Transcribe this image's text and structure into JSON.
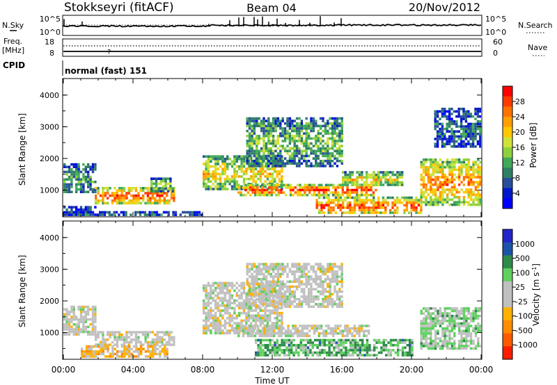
{
  "header": {
    "radar": "Stokkseyri (fitACF)",
    "beam": "Beam 04",
    "date": "20/Nov/2012"
  },
  "nsky_panel": {
    "left_label": "N.Sky",
    "right_label": "N.Search",
    "left_ticks": [
      "10^5",
      "10^0"
    ],
    "right_ticks": [
      "10^5",
      "10^0"
    ]
  },
  "freq_panel": {
    "left_label_1": "Freq.",
    "left_label_2": "[MHz]",
    "right_label": "Nave",
    "left_ticks": [
      "18",
      "8"
    ],
    "right_ticks": [
      "60",
      "0"
    ]
  },
  "cpid": {
    "label": "CPID",
    "value": "normal (fast) 151"
  },
  "x_axis": {
    "label": "Time UT",
    "ticks": [
      "00:00",
      "04:00",
      "08:00",
      "12:00",
      "16:00",
      "20:00",
      "00:00"
    ]
  },
  "chart_data": [
    {
      "type": "heatmap",
      "name": "power",
      "ylabel": "Slant Range [km]",
      "x_range_hours": [
        0,
        24
      ],
      "ylim": [
        180,
        4500
      ],
      "yticks": [
        "1000",
        "2000",
        "3000",
        "4000"
      ],
      "colorbar": {
        "label": "Power [dB]",
        "ticks": [
          "28",
          "24",
          "20",
          "16",
          "12",
          "8",
          "4"
        ],
        "colors": [
          "#ff0000",
          "#ff3a00",
          "#ff7200",
          "#ffa000",
          "#ffc800",
          "#cfe23a",
          "#8fd13c",
          "#3fa95a",
          "#2f7f63",
          "#274e9a",
          "#0019c8",
          "#0000ff"
        ]
      },
      "bands": [
        {
          "t0": 0.0,
          "t1": 1.8,
          "r0": 950,
          "r1": 1850,
          "level": 0.3
        },
        {
          "t0": 0.0,
          "t1": 1.8,
          "r0": 200,
          "r1": 500,
          "level": 0.15
        },
        {
          "t0": 1.8,
          "t1": 6.3,
          "r0": 600,
          "r1": 1100,
          "level": 0.82
        },
        {
          "t0": 5.0,
          "t1": 6.3,
          "r0": 1000,
          "r1": 1400,
          "level": 0.45
        },
        {
          "t0": 0.0,
          "t1": 8.0,
          "r0": 200,
          "r1": 340,
          "level": 0.18
        },
        {
          "t0": 8.0,
          "t1": 12.5,
          "r0": 1000,
          "r1": 2100,
          "level": 0.55
        },
        {
          "t0": 10.0,
          "t1": 18.0,
          "r0": 880,
          "r1": 1200,
          "level": 0.86
        },
        {
          "t0": 10.5,
          "t1": 16.0,
          "r0": 1800,
          "r1": 3300,
          "level": 0.38
        },
        {
          "t0": 16.0,
          "t1": 19.5,
          "r0": 1150,
          "r1": 1600,
          "level": 0.55
        },
        {
          "t0": 14.5,
          "t1": 20.5,
          "r0": 250,
          "r1": 800,
          "level": 0.78
        },
        {
          "t0": 20.5,
          "t1": 23.9,
          "r0": 550,
          "r1": 2000,
          "level": 0.72
        },
        {
          "t0": 21.3,
          "t1": 23.9,
          "r0": 2400,
          "r1": 3600,
          "level": 0.22
        }
      ]
    },
    {
      "type": "heatmap",
      "name": "velocity",
      "ylabel": "Slant Range [km]",
      "x_range_hours": [
        0,
        24
      ],
      "ylim": [
        180,
        4500
      ],
      "yticks": [
        "1000",
        "2000",
        "3000",
        "4000"
      ],
      "colorbar": {
        "label": "Velocity [m s^-1]",
        "ticks": [
          "1000",
          "500",
          "100",
          "25",
          "-25",
          "-100",
          "-500",
          "-1000"
        ],
        "colors": [
          "#2424c8",
          "#1c54a8",
          "#2e8a4a",
          "#5ed05e",
          "#c0c0c0",
          "#c0c0c0",
          "#ffb000",
          "#ff8c00",
          "#ff5a00",
          "#ff1e00"
        ]
      },
      "bands": [
        {
          "t0": 0.0,
          "t1": 1.8,
          "r0": 950,
          "r1": 1850,
          "level": 0.5
        },
        {
          "t0": 1.8,
          "t1": 6.3,
          "r0": 650,
          "r1": 1050,
          "level": 0.5
        },
        {
          "t0": 1.0,
          "t1": 6.0,
          "r0": 250,
          "r1": 600,
          "level": 0.65
        },
        {
          "t0": 8.0,
          "t1": 12.5,
          "r0": 1000,
          "r1": 2600,
          "level": 0.5
        },
        {
          "t0": 10.0,
          "t1": 17.5,
          "r0": 900,
          "r1": 1250,
          "level": 0.5
        },
        {
          "t0": 10.5,
          "t1": 16.0,
          "r0": 1800,
          "r1": 3200,
          "level": 0.5
        },
        {
          "t0": 11.0,
          "t1": 20.0,
          "r0": 300,
          "r1": 800,
          "level": 0.3
        },
        {
          "t0": 20.5,
          "t1": 23.9,
          "r0": 500,
          "r1": 1800,
          "level": 0.4
        }
      ]
    }
  ]
}
